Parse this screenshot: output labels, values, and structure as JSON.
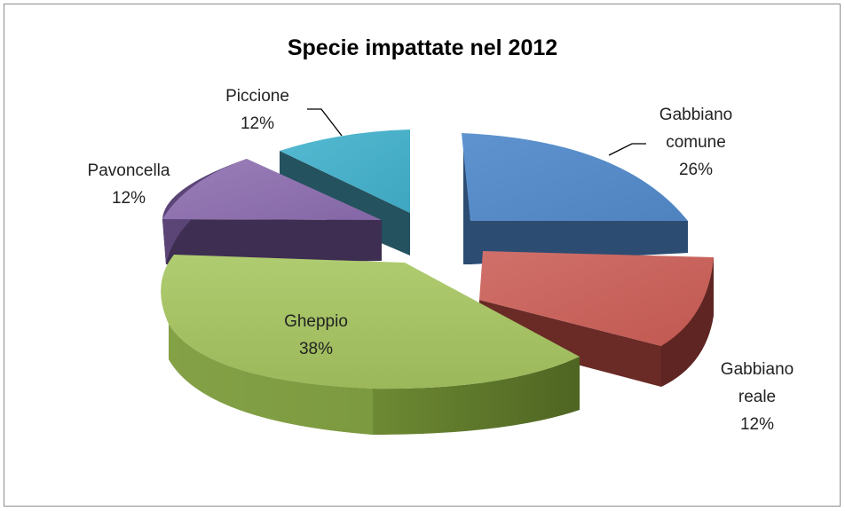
{
  "chart_data": {
    "type": "pie",
    "title": "Specie impattate nel 2012",
    "slices": [
      {
        "label_lines": [
          "Gabbiano",
          "comune"
        ],
        "percent_label": "26%",
        "value": 26,
        "color": "#5b8fc9"
      },
      {
        "label_lines": [
          "Gabbiano",
          "reale"
        ],
        "percent_label": "12%",
        "value": 12,
        "color": "#c9625c"
      },
      {
        "label_lines": [
          "Gheppio"
        ],
        "percent_label": "38%",
        "value": 38,
        "color": "#a4c062"
      },
      {
        "label_lines": [
          "Pavoncella"
        ],
        "percent_label": "12%",
        "value": 12,
        "color": "#8f72ad"
      },
      {
        "label_lines": [
          "Piccione"
        ],
        "percent_label": "12%",
        "value": 12,
        "color": "#4aaec6"
      }
    ]
  }
}
